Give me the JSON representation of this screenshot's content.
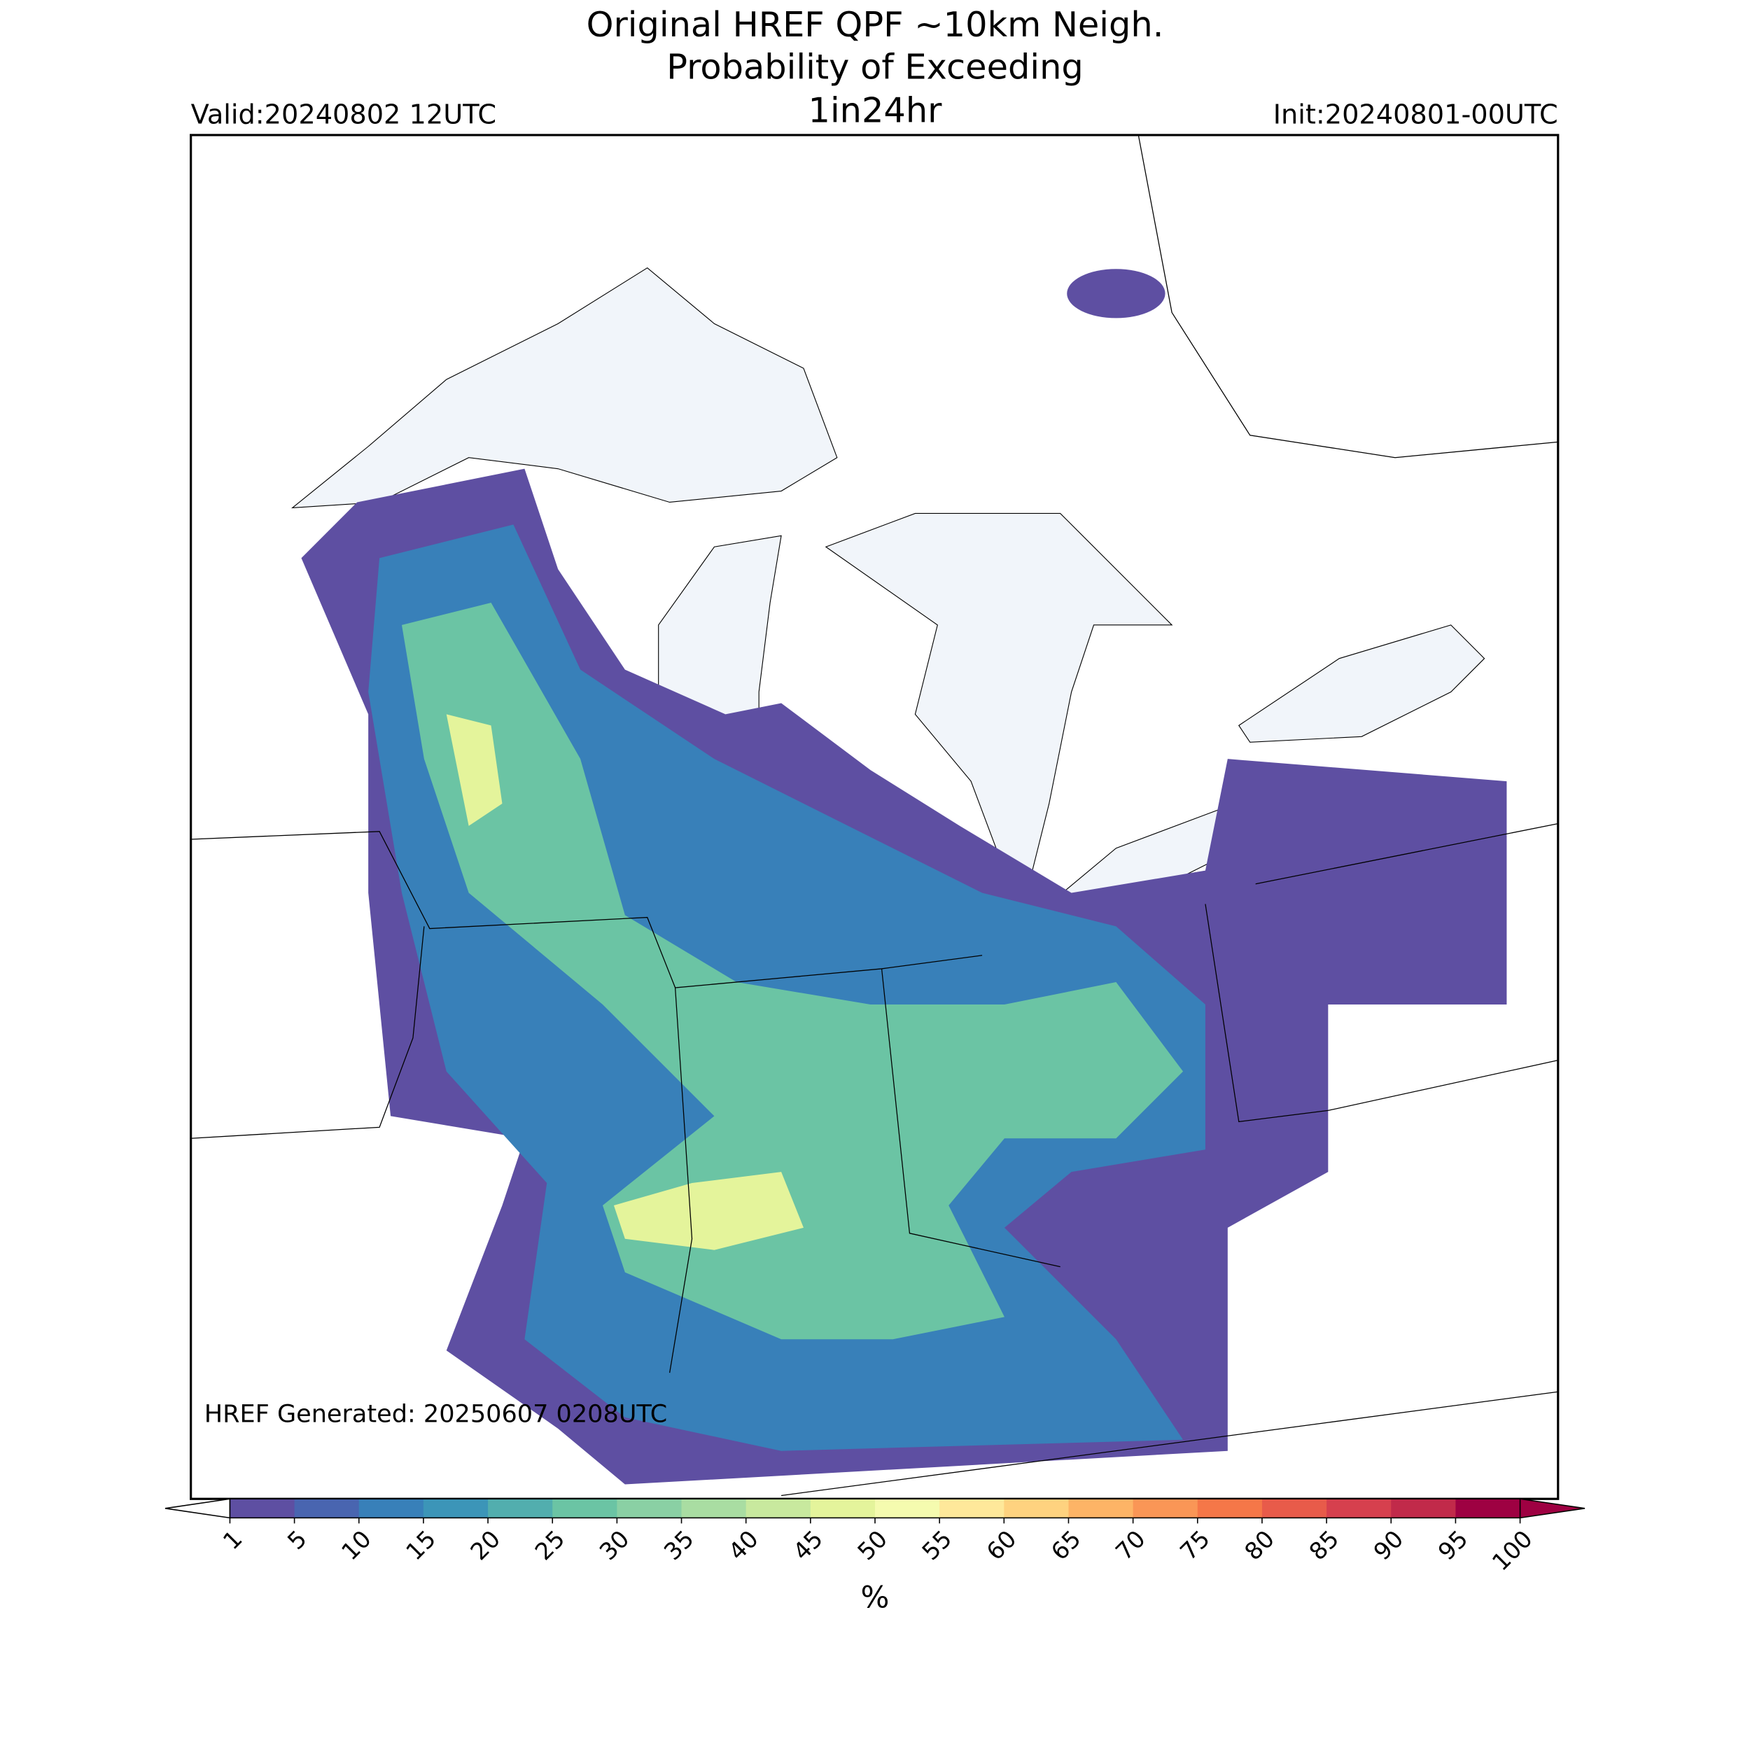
{
  "header": {
    "title": [
      "Original HREF QPF ~10km Neigh.",
      "Probability of Exceeding"
    ],
    "subtitle": "1in24hr",
    "valid": "Valid:20240802 12UTC",
    "init": "Init:20240801-00UTC"
  },
  "map": {
    "generated": "HREF Generated: 20250607 0208UTC"
  },
  "colorbar": {
    "label": "%",
    "ticks": [
      1,
      5,
      10,
      15,
      20,
      25,
      30,
      35,
      40,
      45,
      50,
      55,
      60,
      65,
      70,
      75,
      80,
      85,
      90,
      95,
      100
    ],
    "colors": [
      "#5e4fa2",
      "#4965b0",
      "#3880b9",
      "#3c95b8",
      "#52aeae",
      "#6bc4a4",
      "#8ad0a4",
      "#a9dda2",
      "#c8e99e",
      "#e4f49b",
      "#f5fbaf",
      "#fee89a",
      "#fed27f",
      "#fdb466",
      "#fa9656",
      "#f57748",
      "#e85b4a",
      "#d6404e",
      "#c12a4a",
      "#9e0142"
    ],
    "under_color": "#ffffff",
    "over_color": "#9e0142"
  }
}
